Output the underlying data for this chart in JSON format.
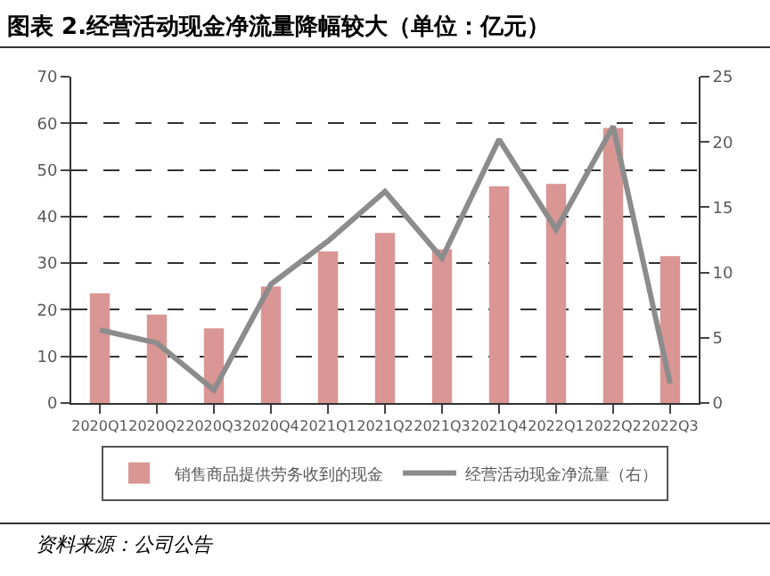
{
  "chart_data": {
    "type": "bar",
    "title": "图表 2.经营活动现金净流量降幅较大（单位：亿元）",
    "categories": [
      "2020Q1",
      "2020Q2",
      "2020Q3",
      "2020Q4",
      "2021Q1",
      "2021Q2",
      "2021Q3",
      "2021Q4",
      "2022Q1",
      "2022Q2",
      "2022Q3"
    ],
    "series": [
      {
        "name": "销售商品提供劳务收到的现金",
        "color": "#d99694",
        "values": [
          23.5,
          19,
          16,
          25,
          32.5,
          36.5,
          33,
          46.5,
          47,
          59,
          31.5
        ]
      },
      {
        "name": "经营活动现金净流量（右）",
        "type": "line",
        "axis": "y2",
        "color": "#8c8c8c",
        "values": [
          5.6,
          4.6,
          1.0,
          9.1,
          12.4,
          16.2,
          11.1,
          20.2,
          13.3,
          21.2,
          1.5
        ]
      }
    ],
    "ylim": [
      0,
      70
    ],
    "yticks": [
      0,
      10,
      20,
      30,
      40,
      50,
      60,
      70
    ],
    "y2lim": [
      0,
      25
    ],
    "y2ticks": [
      0,
      5,
      10,
      15,
      20,
      25
    ],
    "grid": "y",
    "legend": "bottom",
    "marker": "none",
    "line_style": "solid",
    "annotations": [
      "资料来源：公司公告"
    ]
  }
}
